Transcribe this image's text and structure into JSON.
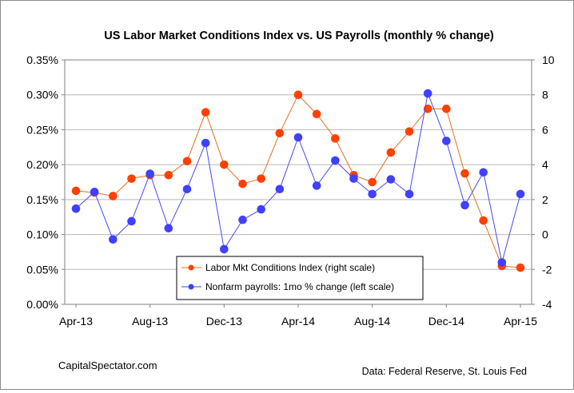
{
  "chart_data": {
    "type": "line",
    "title": "US Labor Market Conditions Index vs. US Payrolls (monthly % change)",
    "categories": [
      "Apr-13",
      "May-13",
      "Jun-13",
      "Jul-13",
      "Aug-13",
      "Sep-13",
      "Oct-13",
      "Nov-13",
      "Dec-13",
      "Jan-14",
      "Feb-14",
      "Mar-14",
      "Apr-14",
      "May-14",
      "Jun-14",
      "Jul-14",
      "Aug-14",
      "Sep-14",
      "Oct-14",
      "Nov-14",
      "Dec-14",
      "Jan-15",
      "Feb-15",
      "Mar-15",
      "Apr-15"
    ],
    "x_tick_labels": [
      "Apr-13",
      "Aug-13",
      "Dec-13",
      "Apr-14",
      "Aug-14",
      "Dec-14",
      "Apr-15"
    ],
    "left_axis": {
      "ylim": [
        0,
        0.35
      ],
      "ticks": [
        "0.00%",
        "0.05%",
        "0.10%",
        "0.15%",
        "0.20%",
        "0.25%",
        "0.30%",
        "0.35%"
      ]
    },
    "right_axis": {
      "ylim": [
        -4,
        10
      ],
      "ticks": [
        "-4",
        "-2",
        "0",
        "2",
        "4",
        "6",
        "8",
        "10"
      ]
    },
    "series": [
      {
        "name": "Labor Mkt Conditions Index (right scale)",
        "axis": "right",
        "color": "#ff4000",
        "line_color": "#e07020",
        "values": [
          2.5,
          2.4,
          2.2,
          3.2,
          3.4,
          3.4,
          4.2,
          7.0,
          4.0,
          2.9,
          3.2,
          5.8,
          8.0,
          6.9,
          5.5,
          3.4,
          3.0,
          4.7,
          5.9,
          7.2,
          7.2,
          3.5,
          0.8,
          -1.8,
          -1.9
        ]
      },
      {
        "name": "Nonfarm payrolls: 1mo % change (left scale)",
        "axis": "left",
        "color": "#4040ff",
        "line_color": "#4a4af0",
        "values": [
          0.137,
          0.161,
          0.093,
          0.119,
          0.187,
          0.109,
          0.165,
          0.231,
          0.079,
          0.121,
          0.136,
          0.165,
          0.239,
          0.17,
          0.206,
          0.18,
          0.158,
          0.179,
          0.158,
          0.302,
          0.234,
          0.142,
          0.189,
          0.06,
          0.158
        ]
      }
    ],
    "grid": true,
    "legend_position": "bottom-center"
  },
  "footer": {
    "source_left": "CapitalSpectator.com",
    "source_right": "Data: Federal Reserve, St. Louis Fed"
  }
}
